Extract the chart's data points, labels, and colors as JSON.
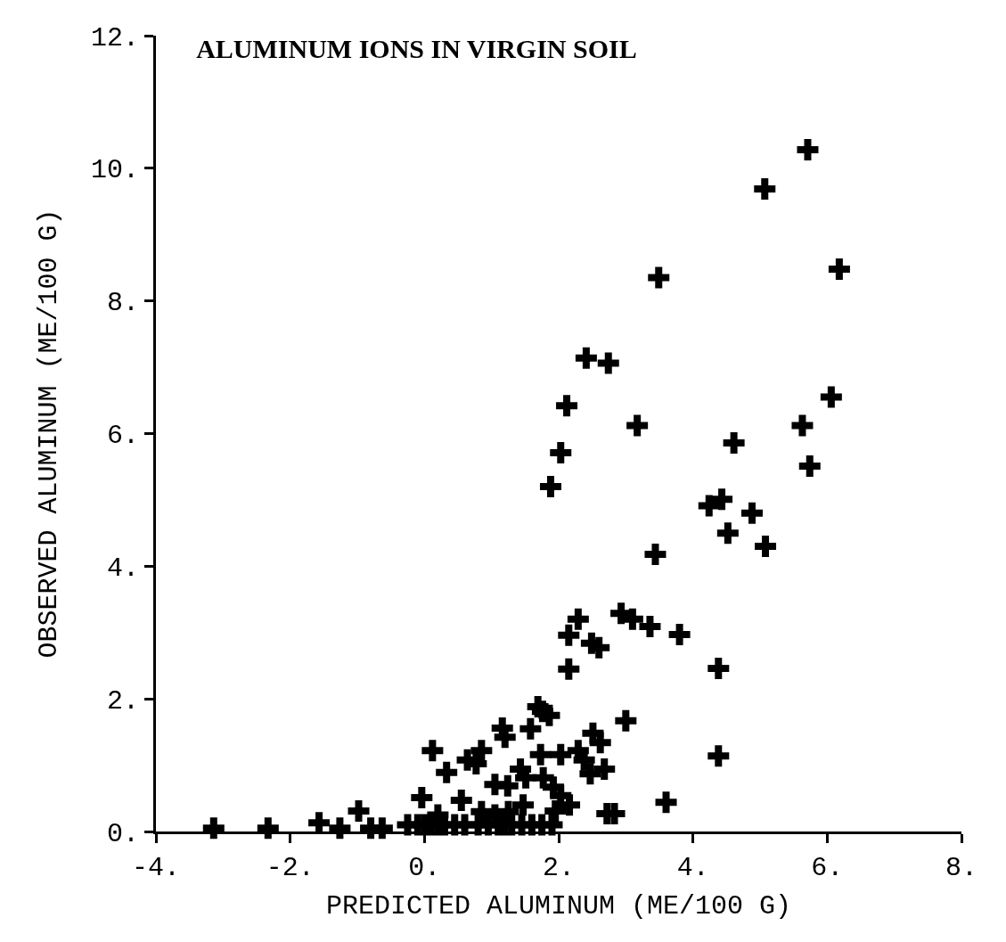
{
  "chart_data": {
    "type": "scatter",
    "title": "ALUMINUM IONS IN VIRGIN SOIL",
    "xlabel": "PREDICTED ALUMINUM (ME/100 G)",
    "ylabel": "OBSERVED ALUMINUM (ME/100 G)",
    "marker": "cross",
    "grid": false,
    "xlim": [
      -4,
      8
    ],
    "ylim": [
      0,
      12
    ],
    "xticks": [
      {
        "value": -4,
        "label": "-4."
      },
      {
        "value": -2,
        "label": "-2."
      },
      {
        "value": 0,
        "label": "0."
      },
      {
        "value": 2,
        "label": "2."
      },
      {
        "value": 4,
        "label": "4."
      },
      {
        "value": 6,
        "label": "6."
      },
      {
        "value": 8,
        "label": "8."
      }
    ],
    "yticks": [
      {
        "value": 0,
        "label": "0."
      },
      {
        "value": 2,
        "label": "2."
      },
      {
        "value": 4,
        "label": "4."
      },
      {
        "value": 6,
        "label": "6."
      },
      {
        "value": 8,
        "label": "8."
      },
      {
        "value": 10,
        "label": "10."
      },
      {
        "value": 12,
        "label": "12."
      }
    ],
    "series": [
      {
        "color": "#000000",
        "x": [
          5.71,
          5.07,
          3.49,
          6.18,
          2.41,
          2.74,
          2.12,
          3.17,
          6.06,
          5.63,
          4.61,
          2.03,
          1.88,
          5.74,
          4.24,
          4.43,
          4.88,
          4.52,
          5.08,
          3.44,
          2.29,
          2.15,
          2.49,
          2.6,
          2.93,
          3.1,
          3.36,
          3.8,
          2.15,
          4.38,
          4.38,
          3.0,
          1.76,
          1.69,
          2.51,
          2.62,
          3.6,
          2.72,
          2.83,
          1.86,
          1.16,
          1.2,
          1.58,
          0.12,
          0.33,
          0.64,
          0.77,
          0.85,
          2.03,
          2.29,
          2.38,
          2.47,
          2.68,
          1.43,
          1.73,
          1.05,
          1.24,
          1.51,
          1.77,
          1.92,
          2.03,
          2.16,
          -0.04,
          0.55,
          1.47,
          1.95,
          -0.98,
          -1.57,
          -1.26,
          -0.8,
          -0.63,
          -3.14,
          -2.33,
          -0.25,
          -0.1,
          0.0,
          0.1,
          0.2,
          0.3,
          0.45,
          0.6,
          0.8,
          0.95,
          1.1,
          1.2,
          1.3,
          1.45,
          1.6,
          1.75,
          1.9,
          0.2,
          0.85,
          1.05,
          1.25
        ],
        "values": [
          10.28,
          9.69,
          8.35,
          8.48,
          7.14,
          7.06,
          6.42,
          6.12,
          6.55,
          6.12,
          5.86,
          5.71,
          5.2,
          5.51,
          4.91,
          5.01,
          4.8,
          4.5,
          4.3,
          4.18,
          3.2,
          2.96,
          2.84,
          2.77,
          3.29,
          3.2,
          3.09,
          2.97,
          2.45,
          2.46,
          1.14,
          1.67,
          1.81,
          1.88,
          1.48,
          1.34,
          0.44,
          0.27,
          0.27,
          1.75,
          1.56,
          1.42,
          1.55,
          1.22,
          0.89,
          1.08,
          1.02,
          1.22,
          1.16,
          1.22,
          1.08,
          0.87,
          0.94,
          0.94,
          1.16,
          0.71,
          0.69,
          0.81,
          0.81,
          0.67,
          0.54,
          0.4,
          0.51,
          0.47,
          0.4,
          0.31,
          0.31,
          0.13,
          0.05,
          0.05,
          0.05,
          0.05,
          0.05,
          0.1,
          0.1,
          0.1,
          0.1,
          0.1,
          0.1,
          0.1,
          0.1,
          0.1,
          0.1,
          0.1,
          0.1,
          0.1,
          0.1,
          0.1,
          0.1,
          0.1,
          0.25,
          0.3,
          0.25,
          0.3
        ]
      }
    ]
  }
}
